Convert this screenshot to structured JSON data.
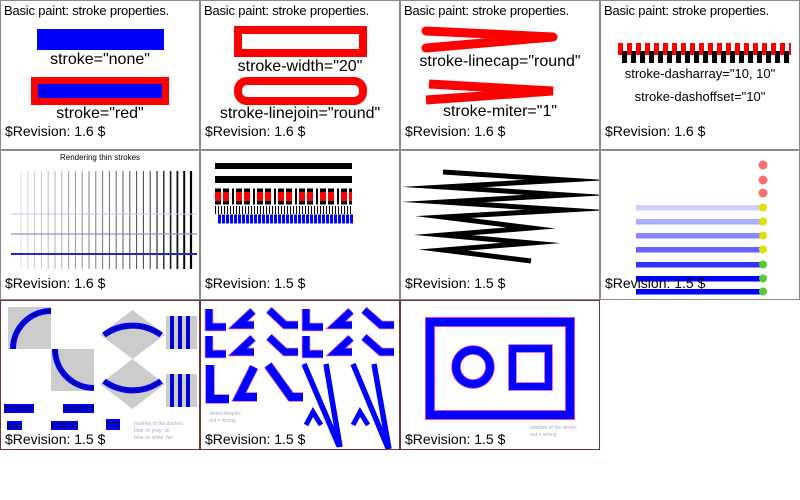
{
  "colors": {
    "stroke_blue": "#0000ff",
    "stroke_red": "#ff0000",
    "navy_core": "#000070",
    "gray_square": "#cccccc",
    "grid_border": "#8a8a8a",
    "row3_border": "#6e3434",
    "note_text": "#b4a8c4",
    "dot_red": "#f87070",
    "dot_yellow": "#e0e000",
    "dot_green": "#55cc33"
  },
  "cells": {
    "r1c1": {
      "title": "Basic paint: stroke properties.",
      "label1": "stroke=\"none\"",
      "label2": "stroke=\"red\"",
      "revision": "$Revision: 1.6 $"
    },
    "r1c2": {
      "title": "Basic paint: stroke properties.",
      "label1": "stroke-width=\"20\"",
      "label2": "stroke-linejoin=\"round\"",
      "revision": "$Revision: 1.6 $"
    },
    "r1c3": {
      "title": "Basic paint: stroke properties.",
      "label1": "stroke-linecap=\"round\"",
      "label2": "stroke-miter=\"1\"",
      "revision": "$Revision: 1.6 $"
    },
    "r1c4": {
      "title": "Basic paint: stroke properties.",
      "label1": "stroke-dasharray=\"10, 10\"",
      "label2": "stroke-dashoffset=\"10\"",
      "revision": "$Revision: 1.6 $"
    },
    "r2c1": {
      "title": "Rendering thin strokes",
      "revision": "$Revision: 1.6 $"
    },
    "r2c2": {
      "revision": "$Revision: 1.5 $"
    },
    "r2c3": {
      "revision": "$Revision: 1.5 $"
    },
    "r2c4": {
      "revision": "$Revision: 1.5 $"
    },
    "r3c1": {
      "revision": "$Revision: 1.5 $",
      "note1": "position of the dashes:",
      "note2": "blue on gray: ok",
      "note3": "blue on white: fail"
    },
    "r3c2": {
      "revision": "$Revision: 1.5 $",
      "note1": "stroke-linejoin:",
      "note2": "red = wrong"
    },
    "r3c3": {
      "revision": "$Revision: 1.5 $",
      "note1": "position of the stroke:",
      "note2": "red = wrong"
    }
  }
}
